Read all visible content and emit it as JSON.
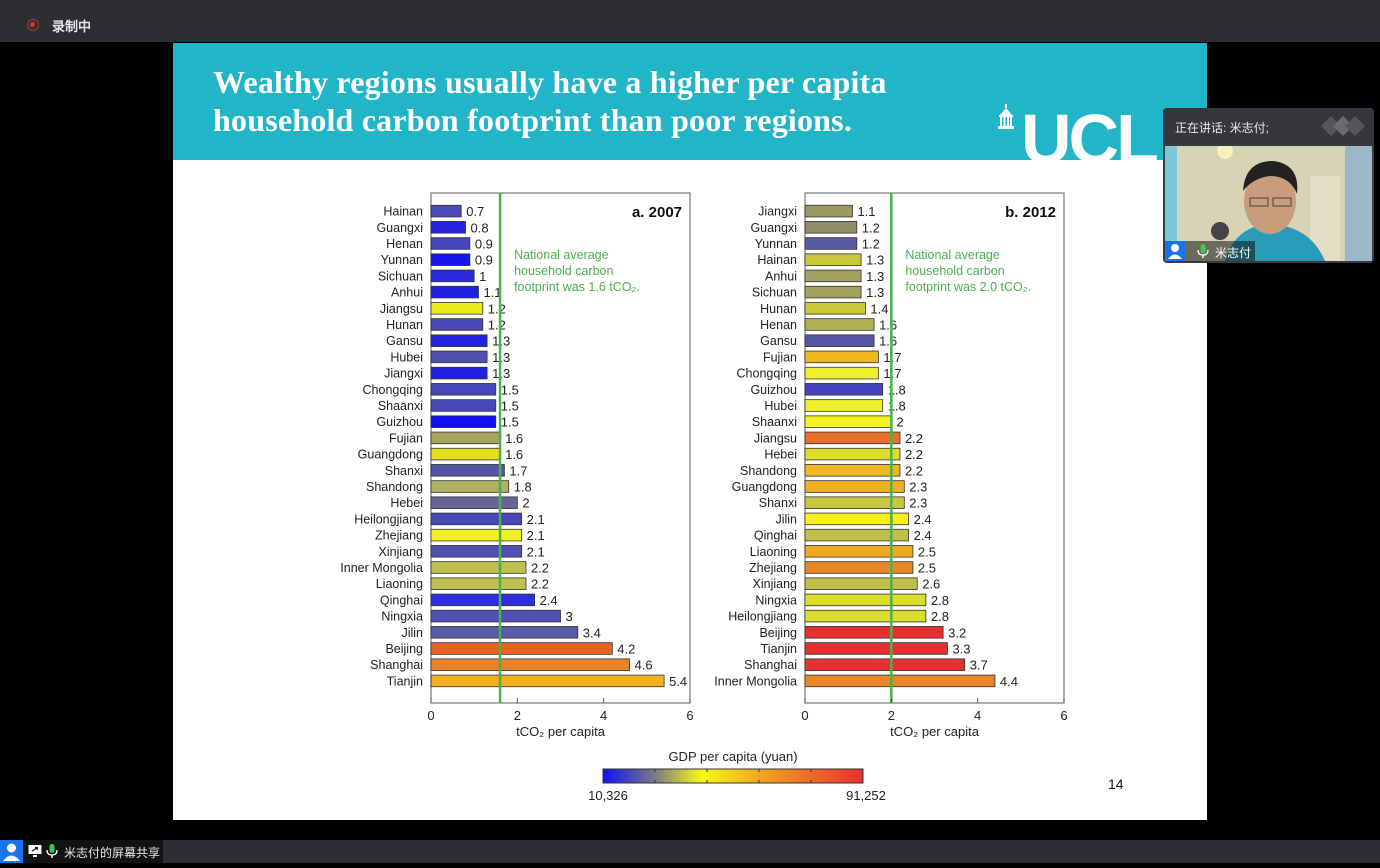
{
  "topbar": {
    "recording_label": "录制中"
  },
  "slide": {
    "title_line1": "Wealthy regions usually have a higher per capita",
    "title_line2": "household carbon footprint than poor regions.",
    "logo_text": "UCL",
    "page_number": "14",
    "colors": {
      "header": "#22b5c8",
      "avg_line": "#4caf50"
    }
  },
  "video": {
    "speaking_label": "正在讲话: 米志付;",
    "participant_name": "米志付"
  },
  "bottombar": {
    "share_label": "米志付的屏幕共享"
  },
  "chart_data": [
    {
      "type": "bar",
      "orientation": "horizontal",
      "title": "a. 2007",
      "xlabel": "tCO₂ per capita",
      "xlim": [
        0,
        6
      ],
      "xticks": [
        "0",
        "2",
        "4",
        "6"
      ],
      "reference_line": {
        "value": 1.6,
        "annotation": [
          "National average",
          "household carbon",
          "footprint was 1.6 tCO₂."
        ]
      },
      "categories": [
        "Hainan",
        "Guangxi",
        "Henan",
        "Yunnan",
        "Sichuan",
        "Anhui",
        "Jiangsu",
        "Hunan",
        "Gansu",
        "Hubei",
        "Jiangxi",
        "Chongqing",
        "Shaanxi",
        "Guizhou",
        "Fujian",
        "Guangdong",
        "Shanxi",
        "Shandong",
        "Hebei",
        "Heilongjiang",
        "Zhejiang",
        "Xinjiang",
        "Inner Mongolia",
        "Liaoning",
        "Qinghai",
        "Ningxia",
        "Jilin",
        "Beijing",
        "Shanghai",
        "Tianjin"
      ],
      "values": [
        0.7,
        0.8,
        0.9,
        0.9,
        1,
        1.1,
        1.2,
        1.2,
        1.3,
        1.3,
        1.3,
        1.5,
        1.5,
        1.5,
        1.6,
        1.6,
        1.7,
        1.8,
        2,
        2.1,
        2.1,
        2.1,
        2.2,
        2.2,
        2.4,
        3,
        3.4,
        4.2,
        4.6,
        5.4
      ],
      "labels": [
        "0.7",
        "0.8",
        "0.9",
        "0.9",
        "1",
        "1.1",
        "1.2",
        "1.2",
        "1.3",
        "1.3",
        "1.3",
        "1.5",
        "1.5",
        "1.5",
        "1.6",
        "1.6",
        "1.7",
        "1.8",
        "2",
        "2.1",
        "2.1",
        "2.1",
        "2.2",
        "2.2",
        "2.4",
        "3",
        "3.4",
        "4.2",
        "4.6",
        "5.4"
      ],
      "colors": [
        "#4a4ab8",
        "#2525e0",
        "#4646b8",
        "#1515f0",
        "#2a2ad8",
        "#2020e0",
        "#ecec1a",
        "#4848b8",
        "#2222e0",
        "#5050b0",
        "#2020e0",
        "#4848b8",
        "#4848b8",
        "#1010f5",
        "#a5a560",
        "#e0e020",
        "#5454a8",
        "#b0b060",
        "#666695",
        "#4848b8",
        "#f0f020",
        "#5050b0",
        "#c0c050",
        "#c0c050",
        "#2e2ed8",
        "#5050b0",
        "#5a5aa8",
        "#e86424",
        "#e8822a",
        "#f0b020"
      ]
    },
    {
      "type": "bar",
      "orientation": "horizontal",
      "title": "b. 2012",
      "xlabel": "tCO₂ per capita",
      "xlim": [
        0,
        6
      ],
      "xticks": [
        "0",
        "2",
        "4",
        "6"
      ],
      "reference_line": {
        "value": 2.0,
        "annotation": [
          "National average",
          "household carbon",
          "footprint was 2.0 tCO₂."
        ]
      },
      "categories": [
        "Jiangxi",
        "Guangxi",
        "Yunnan",
        "Hainan",
        "Anhui",
        "Sichuan",
        "Hunan",
        "Henan",
        "Gansu",
        "Fujian",
        "Chongqing",
        "Guizhou",
        "Hubei",
        "Shaanxi",
        "Jiangsu",
        "Hebei",
        "Shandong",
        "Guangdong",
        "Shanxi",
        "Jilin",
        "Qinghai",
        "Liaoning",
        "Zhejiang",
        "Xinjiang",
        "Ningxia",
        "Heilongjiang",
        "Beijing",
        "Tianjin",
        "Shanghai",
        "Inner Mongolia"
      ],
      "values": [
        1.1,
        1.2,
        1.2,
        1.3,
        1.3,
        1.3,
        1.4,
        1.6,
        1.6,
        1.7,
        1.7,
        1.8,
        1.8,
        2,
        2.2,
        2.2,
        2.2,
        2.3,
        2.3,
        2.4,
        2.4,
        2.5,
        2.5,
        2.6,
        2.8,
        2.8,
        3.2,
        3.3,
        3.7,
        4.4
      ],
      "labels": [
        "1.1",
        "1.2",
        "1.2",
        "1.3",
        "1.3",
        "1.3",
        "1.4",
        "1.6",
        "1.6",
        "1.7",
        "1.7",
        "1.8",
        "1.8",
        "2",
        "2.2",
        "2.2",
        "2.2",
        "2.3",
        "2.3",
        "2.4",
        "2.4",
        "2.5",
        "2.5",
        "2.6",
        "2.8",
        "2.8",
        "3.2",
        "3.3",
        "3.7",
        "4.4"
      ],
      "colors": [
        "#9a9a60",
        "#8e8e68",
        "#5a5aa0",
        "#c8c838",
        "#a0a060",
        "#a0a060",
        "#c8c838",
        "#b0b055",
        "#5656a0",
        "#f0b820",
        "#f0f030",
        "#4444b8",
        "#f0f030",
        "#f4f420",
        "#e8702a",
        "#dcdc2a",
        "#f0b820",
        "#f0b020",
        "#c8c840",
        "#f8f018",
        "#c0c048",
        "#f0a820",
        "#e8862a",
        "#c0c048",
        "#dcdc2a",
        "#dcdc2a",
        "#e43030",
        "#e43030",
        "#e43030",
        "#e8862a"
      ]
    }
  ],
  "colorbar": {
    "title": "GDP per capita (yuan)",
    "min_label": "10,326",
    "max_label": "91,252",
    "stops": [
      "#1010f0",
      "#7a7a8a",
      "#f8f818",
      "#f0a020",
      "#e83030"
    ]
  }
}
